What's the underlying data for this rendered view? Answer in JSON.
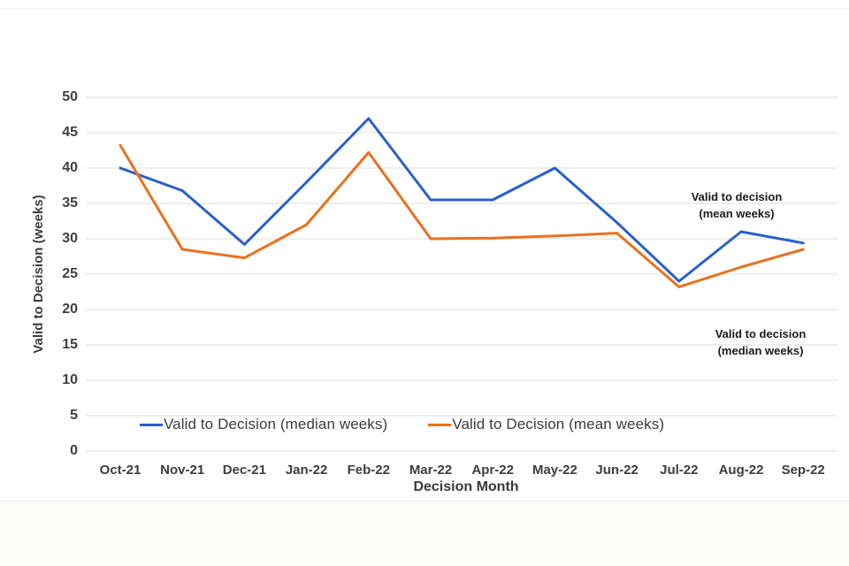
{
  "chart_data": {
    "type": "line",
    "title": "",
    "xlabel": "Decision Month",
    "ylabel": "Valid to Decision (weeks)",
    "categories": [
      "Oct-21",
      "Nov-21",
      "Dec-21",
      "Jan-22",
      "Feb-22",
      "Mar-22",
      "Apr-22",
      "May-22",
      "Jun-22",
      "Jul-22",
      "Aug-22",
      "Sep-22"
    ],
    "series": [
      {
        "name": "Valid to Decision (median weeks)",
        "color": "#2a60c6",
        "values": [
          40,
          36.8,
          29.2,
          38,
          47,
          35.5,
          35.5,
          40,
          32.3,
          24,
          31,
          29.4
        ]
      },
      {
        "name": "Valid to Decision (mean weeks)",
        "color": "#e8711f",
        "values": [
          43.2,
          28.5,
          27.3,
          32,
          42.2,
          30,
          30.1,
          30.4,
          30.8,
          23.2,
          26,
          28.5
        ]
      }
    ],
    "ylim": [
      0,
      50
    ],
    "y_tick_step": 5,
    "grid": true,
    "gridline_color": "#e4e4e2",
    "legend_position": "bottom-inside",
    "annotations": [
      {
        "line1": "Valid to decision",
        "line2": "(mean weeks)"
      },
      {
        "line1": "Valid to decision",
        "line2": "(median weeks)"
      }
    ]
  }
}
